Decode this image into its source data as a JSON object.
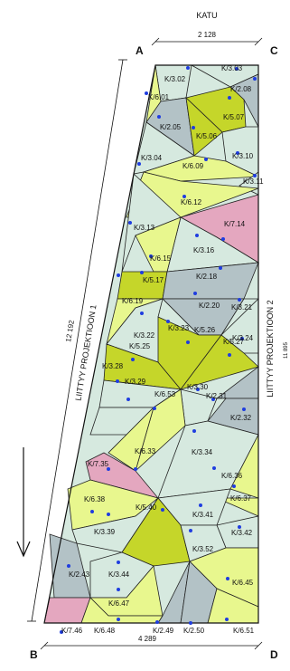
{
  "header": {
    "street_label": "KATU"
  },
  "corners": {
    "a": "A",
    "b": "B",
    "c": "C",
    "d": "D"
  },
  "dimensions": {
    "top_width": "2 128",
    "bottom_width": "4 289",
    "left_length": "12 192",
    "right_length": "11 895"
  },
  "side_labels": {
    "left": "LIITTYY PROJEKTIOON 1",
    "right": "LIITTYY PROJEKTIOON 2"
  },
  "colors": {
    "light_green": "#d6e9df",
    "yellow_green": "#e8f78e",
    "olive": "#c5d62a",
    "grey_blue": "#b3c2c6",
    "pink": "#e4a7bf",
    "line": "#222222",
    "dot": "#1f3de0"
  },
  "panels": [
    {
      "id": "K/3.02",
      "fill": "light_green"
    },
    {
      "id": "K/3.03",
      "fill": "light_green"
    },
    {
      "id": "K/2.08",
      "fill": "grey_blue"
    },
    {
      "id": "K/6.01",
      "fill": "yellow_green"
    },
    {
      "id": "K/5.07",
      "fill": "olive"
    },
    {
      "id": "K/2.05",
      "fill": "grey_blue"
    },
    {
      "id": "K/5.06",
      "fill": "olive"
    },
    {
      "id": "K/3.04",
      "fill": "light_green"
    },
    {
      "id": "K/3.10",
      "fill": "light_green"
    },
    {
      "id": "K/6.09",
      "fill": "yellow_green"
    },
    {
      "id": "K/3.11",
      "fill": "light_green"
    },
    {
      "id": "K/6.12",
      "fill": "yellow_green"
    },
    {
      "id": "K/3.13",
      "fill": "light_green"
    },
    {
      "id": "K/7.14",
      "fill": "pink"
    },
    {
      "id": "K/3.16",
      "fill": "light_green"
    },
    {
      "id": "K/6.15",
      "fill": "yellow_green"
    },
    {
      "id": "K/5.17",
      "fill": "olive"
    },
    {
      "id": "K/2.18",
      "fill": "grey_blue"
    },
    {
      "id": "K/6.19",
      "fill": "yellow_green"
    },
    {
      "id": "K/2.20",
      "fill": "grey_blue"
    },
    {
      "id": "K/3.21",
      "fill": "light_green"
    },
    {
      "id": "K/3.22",
      "fill": "light_green"
    },
    {
      "id": "K/3.23",
      "fill": "light_green"
    },
    {
      "id": "K/3.24",
      "fill": "light_green"
    },
    {
      "id": "K/5.25",
      "fill": "olive"
    },
    {
      "id": "K/5.26",
      "fill": "olive"
    },
    {
      "id": "K/5.27",
      "fill": "olive"
    },
    {
      "id": "K/3.28",
      "fill": "light_green"
    },
    {
      "id": "K/3.29",
      "fill": "light_green"
    },
    {
      "id": "K/3.30",
      "fill": "light_green"
    },
    {
      "id": "K/2.31",
      "fill": "grey_blue"
    },
    {
      "id": "K/2.32",
      "fill": "grey_blue"
    },
    {
      "id": "K/6.53",
      "fill": "yellow_green"
    },
    {
      "id": "K/6.33",
      "fill": "yellow_green"
    },
    {
      "id": "K/3.34",
      "fill": "light_green"
    },
    {
      "id": "K/7.35",
      "fill": "pink"
    },
    {
      "id": "K/6.36",
      "fill": "yellow_green"
    },
    {
      "id": "K/6.37",
      "fill": "yellow_green"
    },
    {
      "id": "K/6.38",
      "fill": "yellow_green"
    },
    {
      "id": "K/3.41",
      "fill": "light_green"
    },
    {
      "id": "K/3.39",
      "fill": "light_green"
    },
    {
      "id": "K/5.40",
      "fill": "olive"
    },
    {
      "id": "K/3.42",
      "fill": "light_green"
    },
    {
      "id": "K/3.52",
      "fill": "light_green"
    },
    {
      "id": "K/2.43",
      "fill": "grey_blue"
    },
    {
      "id": "K/3.44",
      "fill": "light_green"
    },
    {
      "id": "K/6.45",
      "fill": "yellow_green"
    },
    {
      "id": "K/6.47",
      "fill": "yellow_green"
    },
    {
      "id": "K/7.46",
      "fill": "pink"
    },
    {
      "id": "K/6.48",
      "fill": "yellow_green"
    },
    {
      "id": "K/2.49",
      "fill": "grey_blue"
    },
    {
      "id": "K/2.50",
      "fill": "grey_blue"
    },
    {
      "id": "K/6.51",
      "fill": "yellow_green"
    }
  ]
}
